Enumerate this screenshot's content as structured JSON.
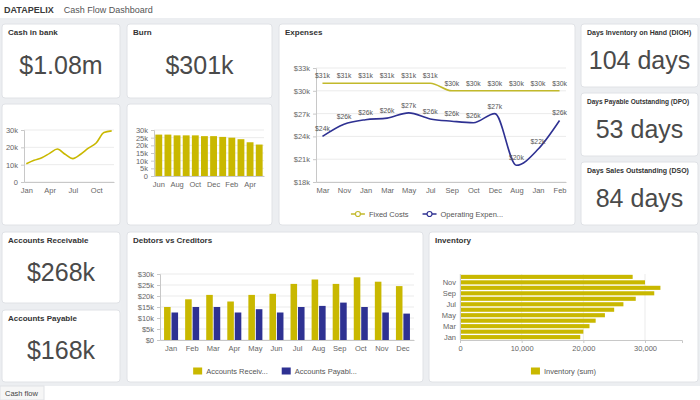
{
  "header": {
    "logo": "DATAPELIX",
    "title": "Cash Flow Dashboard"
  },
  "kpis": [
    {
      "title": "Cash in bank",
      "value": "$1.08m"
    },
    {
      "title": "Burn",
      "value": "$301k"
    },
    {
      "title": "Days Inventory on Hand (DIOH)",
      "value": "104 days"
    },
    {
      "title": "Days Payable Outstanding (DPO)",
      "value": "53 days"
    },
    {
      "title": "Days Sales Outstanding (DSO)",
      "value": "84 days"
    },
    {
      "title": "Accounts Receivable",
      "value": "$268k"
    },
    {
      "title": "Accounts Payable",
      "value": "$168k"
    }
  ],
  "chart_data": [
    {
      "type": "line",
      "categories": [
        "Jan",
        null,
        null,
        "Apr",
        null,
        null,
        "Jul",
        null,
        null,
        "Oct",
        null,
        null
      ],
      "values": [
        10500,
        12500,
        14000,
        16500,
        19000,
        16000,
        13500,
        16000,
        19500,
        22500,
        28500,
        29500
      ],
      "color": "#c9b800",
      "ylim": [
        0,
        30000
      ],
      "yticks": [
        0,
        {
          "value": 10000,
          "label": "10k"
        },
        {
          "value": 20000,
          "label": "20k"
        },
        {
          "value": 30000,
          "label": "30k"
        }
      ],
      "grid": true
    },
    {
      "type": "bar",
      "categories": [
        "Jun",
        null,
        "Aug",
        null,
        "Oct",
        null,
        "Dec",
        null,
        "Feb",
        null,
        "Apr",
        null
      ],
      "values": [
        27000,
        27000,
        26500,
        26500,
        26500,
        26000,
        26000,
        25500,
        25000,
        24000,
        22000,
        20500
      ],
      "color": "#c9b800",
      "ylim": [
        0,
        30000
      ],
      "yticks": [
        0,
        {
          "value": 5000,
          "label": "5k"
        },
        {
          "value": 10000,
          "label": "10k"
        },
        {
          "value": 15000,
          "label": "15k"
        },
        {
          "value": 20000,
          "label": "20k"
        },
        {
          "value": 25000,
          "label": "25k"
        },
        {
          "value": 30000,
          "label": "30k"
        }
      ],
      "grid": true
    },
    {
      "type": "line",
      "title": "Expenses",
      "categories": [
        "Mar",
        "Nov",
        "Jan",
        "Mar",
        "May",
        "Jul",
        "Sep",
        "Oct",
        "Dec",
        "Aug",
        "Jan",
        "Feb"
      ],
      "series": [
        {
          "name": "Fixed Costs",
          "color": "#c2b92b",
          "values": [
            31000,
            31000,
            31000,
            31000,
            31000,
            31000,
            30000,
            30000,
            30000,
            30000,
            30000,
            30000
          ],
          "value_labels": [
            "$31k",
            "$31k",
            "$31k",
            "$31k",
            "$31k",
            "$31k",
            "$30k",
            "$30k",
            "$30k",
            "$30k",
            "$30k",
            "$30k"
          ]
        },
        {
          "name": "Operating Expen...",
          "color": "#2e3192",
          "values": [
            24000,
            25600,
            26200,
            26400,
            27100,
            26300,
            26000,
            25800,
            27000,
            20200,
            22300,
            26100
          ],
          "value_labels": [
            "$24k",
            "$26k",
            "$26k",
            "$26k",
            "$27k",
            "$26k",
            "$26k",
            "$26k",
            "$27k",
            "$20k",
            "$22k",
            "$26k"
          ]
        }
      ],
      "ylim": [
        18000,
        33000
      ],
      "yticks": [
        {
          "value": 18000,
          "label": "$18k"
        },
        {
          "value": 21000,
          "label": "$21k"
        },
        {
          "value": 24000,
          "label": "$24k"
        },
        {
          "value": 27000,
          "label": "$27k"
        },
        {
          "value": 30000,
          "label": "$30k"
        },
        {
          "value": 33000,
          "label": "$33k"
        }
      ],
      "grid": true,
      "data_labels": true,
      "legend": "bottom"
    },
    {
      "type": "bar",
      "title": "Debtors vs Creditors",
      "categories": [
        "Jan",
        "Feb",
        "Mar",
        "Apr",
        "May",
        "Jun",
        "Jul",
        "Aug",
        "Sep",
        "Oct",
        "Nov",
        "Dec"
      ],
      "series": [
        {
          "name": "Accounts Receiv...",
          "color": "#c9b800",
          "values": [
            15000,
            18500,
            20500,
            17500,
            20500,
            21000,
            25500,
            27500,
            25500,
            28500,
            26500,
            24500
          ]
        },
        {
          "name": "Accounts Payabl...",
          "color": "#2e3192",
          "values": [
            12500,
            15000,
            15000,
            12500,
            14000,
            12500,
            15000,
            15500,
            17000,
            15000,
            12500,
            12000
          ]
        }
      ],
      "ylim": [
        0,
        30000
      ],
      "yticks": [
        {
          "value": 0,
          "label": "$0"
        },
        {
          "value": 5000,
          "label": "$5k"
        },
        {
          "value": 10000,
          "label": "$10k"
        },
        {
          "value": 15000,
          "label": "$15k"
        },
        {
          "value": 20000,
          "label": "$20k"
        },
        {
          "value": 25000,
          "label": "$25k"
        },
        {
          "value": 30000,
          "label": "$30k"
        }
      ],
      "grid": true,
      "legend": "bottom"
    },
    {
      "type": "bar",
      "title": "Inventory",
      "orientation": "horizontal",
      "categories": [
        "Jan",
        null,
        "Mar",
        null,
        "May",
        null,
        "Jul",
        null,
        "Sep",
        null,
        "Nov",
        null
      ],
      "series": [
        {
          "name": "Inventory (sum)",
          "color": "#c9b800",
          "values": [
            19500,
            20000,
            21000,
            22000,
            23500,
            25000,
            26500,
            28500,
            31500,
            32500,
            30000,
            28000
          ]
        }
      ],
      "xlim": [
        0,
        36000
      ],
      "xticks": [
        0,
        {
          "value": 10000,
          "label": "10,000"
        },
        {
          "value": 20000,
          "label": "20,000"
        },
        {
          "value": 30000,
          "label": "30,000"
        }
      ],
      "grid": true,
      "legend": "bottom"
    }
  ],
  "footer": {
    "tab": "Cash flow"
  }
}
